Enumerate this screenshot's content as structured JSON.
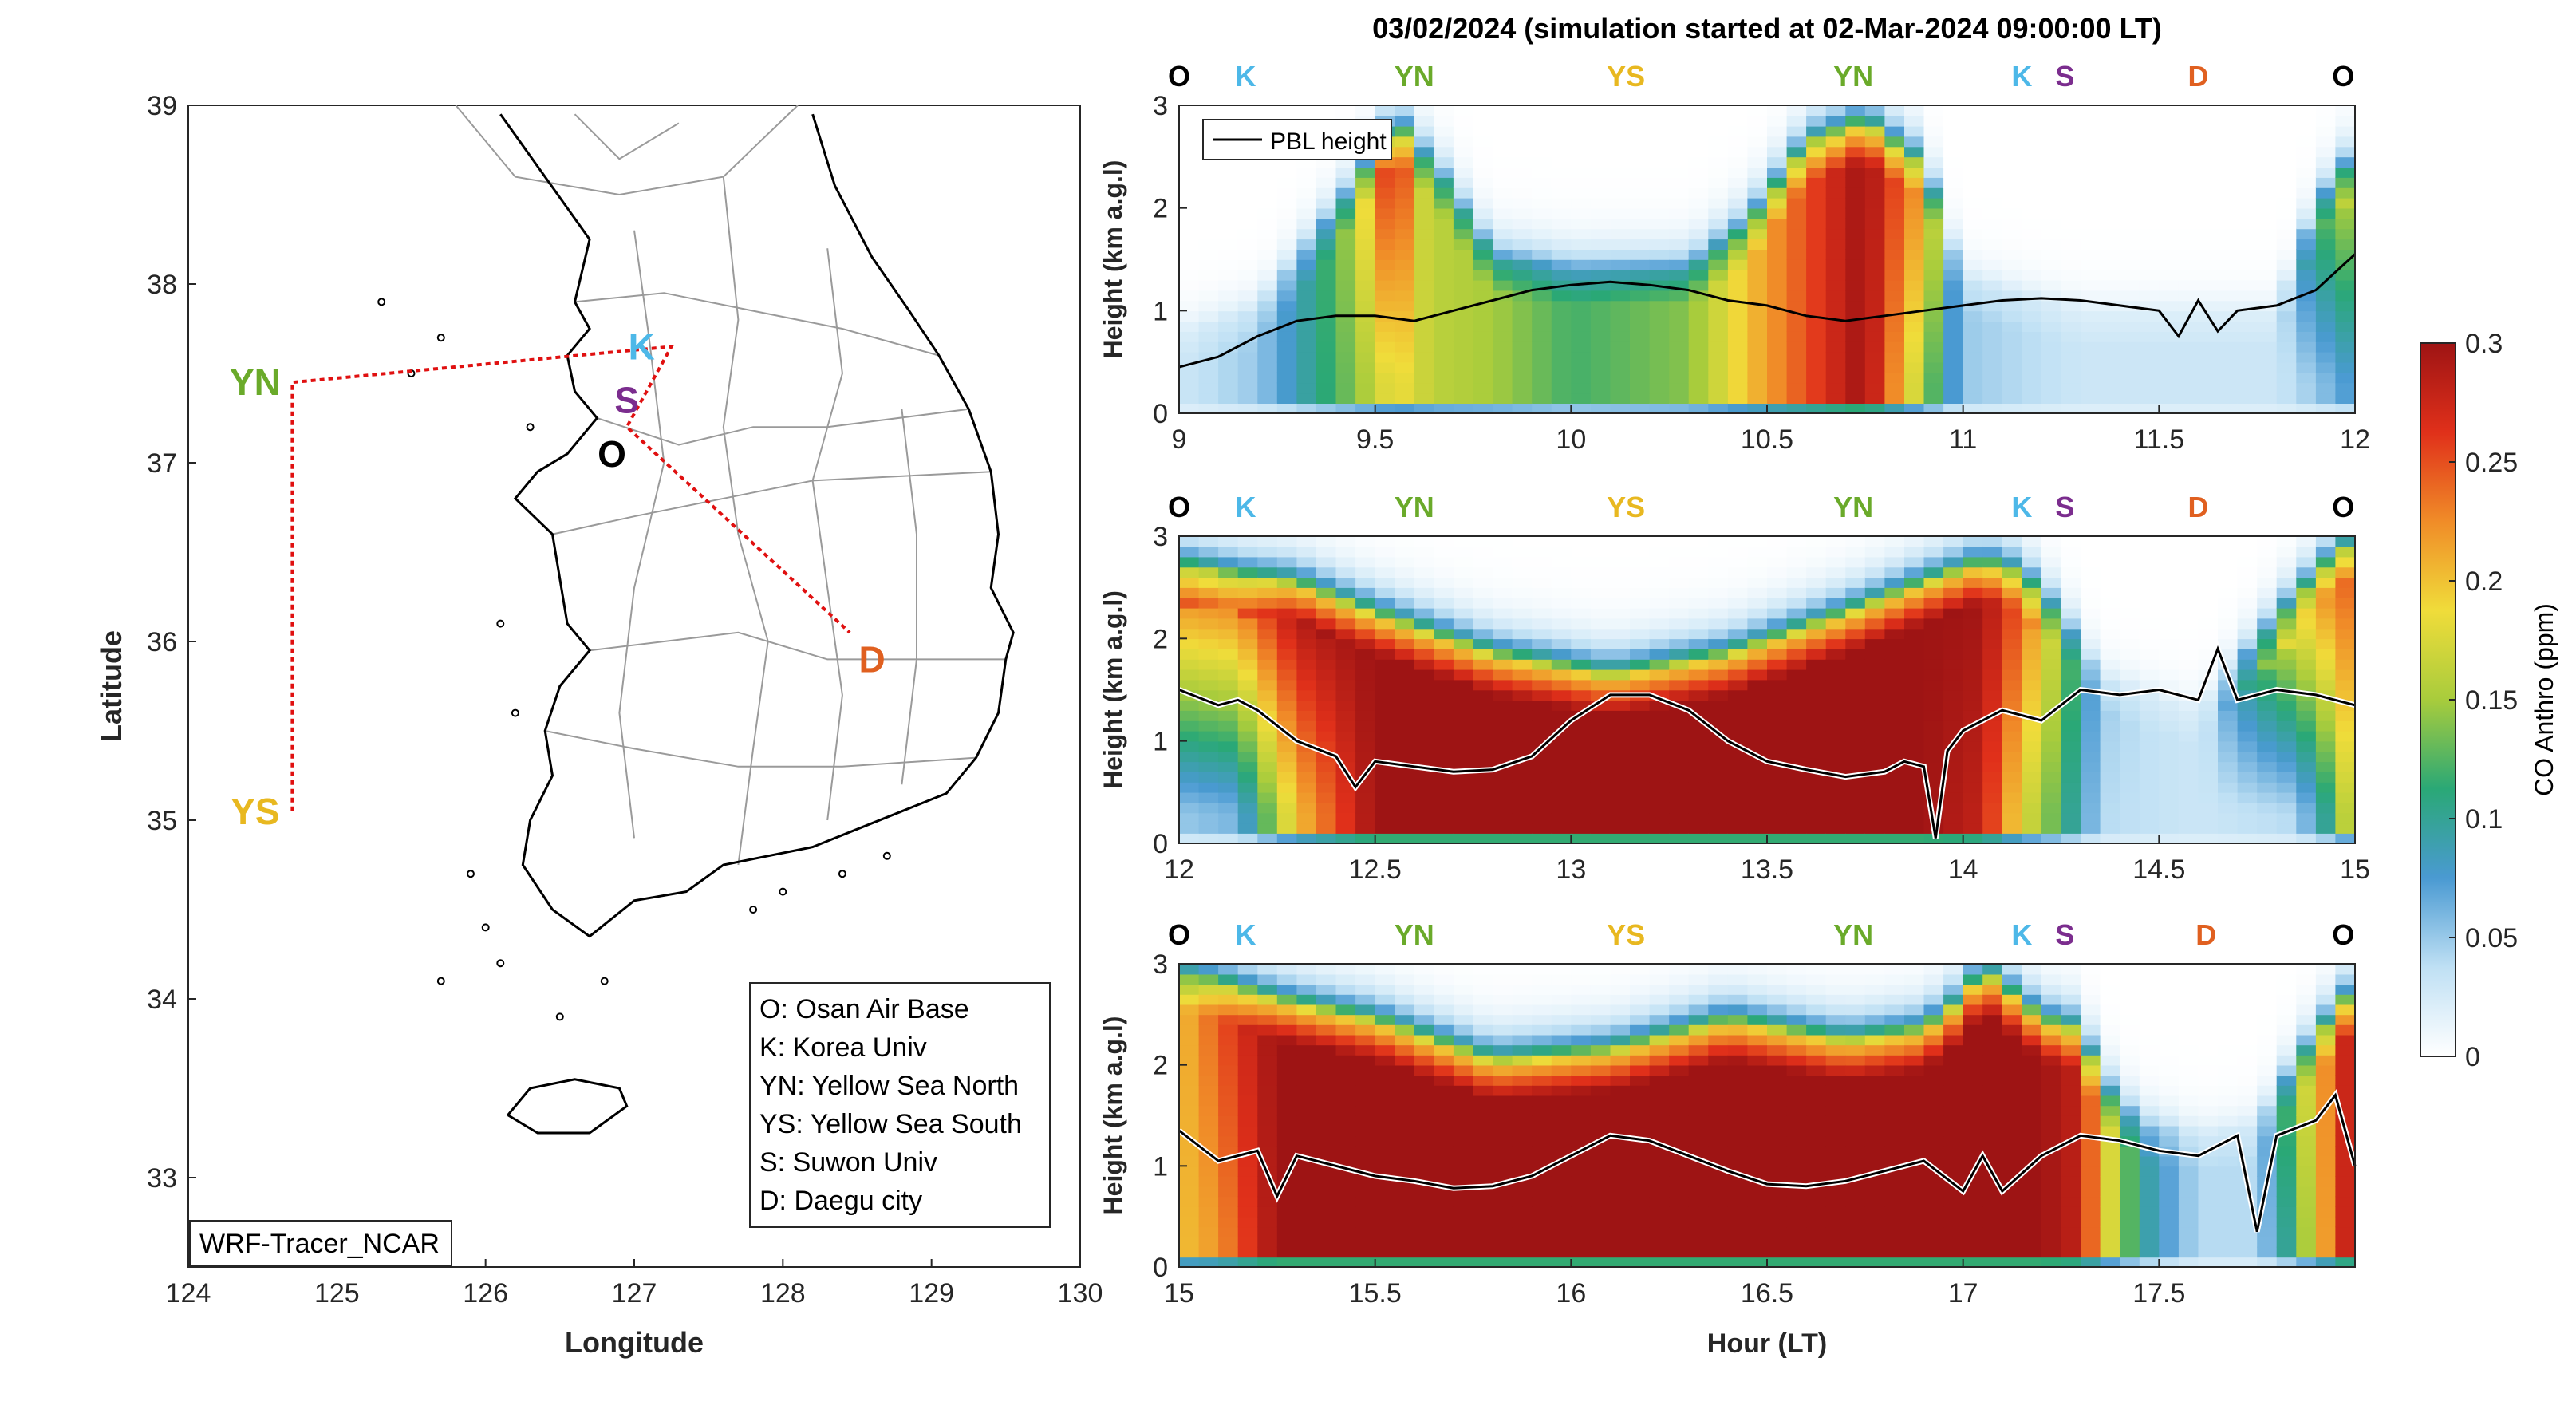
{
  "figure": {
    "title": "03/02/2024 (simulation started at 02-Mar-2024 09:00:00 LT)",
    "colors": {
      "pbl_line": "#000000",
      "pbl_halo": "#ffffff",
      "route_line": "#e01010"
    }
  },
  "map": {
    "xlabel": "Longitude",
    "ylabel": "Latitude",
    "xlim": [
      124,
      130
    ],
    "ylim": [
      32.5,
      39
    ],
    "xticks": [
      "124",
      "125",
      "126",
      "127",
      "128",
      "129",
      "130"
    ],
    "yticks": [
      "33",
      "34",
      "35",
      "36",
      "37",
      "38",
      "39"
    ],
    "source_label": "WRF-Tracer_NCAR",
    "route_path": [
      [
        124.7,
        35.05
      ],
      [
        124.7,
        37.45
      ],
      [
        127.25,
        37.65
      ],
      [
        126.95,
        37.2
      ],
      [
        128.45,
        36.05
      ]
    ],
    "sites": [
      {
        "key": "O",
        "lon": 126.85,
        "lat": 37.05,
        "color": "#000000"
      },
      {
        "key": "K",
        "lon": 127.05,
        "lat": 37.65,
        "color": "#4db8e8"
      },
      {
        "key": "S",
        "lon": 126.95,
        "lat": 37.35,
        "color": "#7b2d8e"
      },
      {
        "key": "YN",
        "lon": 124.45,
        "lat": 37.45,
        "color": "#6aaa2a"
      },
      {
        "key": "YS",
        "lon": 124.45,
        "lat": 35.05,
        "color": "#e8b820"
      },
      {
        "key": "D",
        "lon": 128.6,
        "lat": 35.9,
        "color": "#e06020"
      }
    ],
    "legend": [
      "O: Osan Air Base",
      "K: Korea Univ",
      "YN: Yellow Sea North",
      "YS: Yellow Sea South",
      "S: Suwon Univ",
      "D: Daegu city"
    ]
  },
  "chart_data": [
    {
      "type": "heatmap",
      "panel": 1,
      "xlabel": "",
      "ylabel": "Height (km a.g.l)",
      "xlim": [
        9,
        12
      ],
      "ylim": [
        0,
        3
      ],
      "xticks": [
        "9",
        "9.5",
        "10",
        "10.5",
        "11",
        "11.5",
        "12"
      ],
      "yticks": [
        "0",
        "1",
        "2",
        "3"
      ],
      "legend": [
        "PBL height"
      ],
      "route_labels": [
        {
          "text": "O",
          "x": 9.0,
          "color": "#000000"
        },
        {
          "text": "K",
          "x": 9.17,
          "color": "#4db8e8"
        },
        {
          "text": "YN",
          "x": 9.6,
          "color": "#6aaa2a"
        },
        {
          "text": "YS",
          "x": 10.14,
          "color": "#e8b820"
        },
        {
          "text": "YN",
          "x": 10.72,
          "color": "#6aaa2a"
        },
        {
          "text": "K",
          "x": 11.15,
          "color": "#4db8e8"
        },
        {
          "text": "S",
          "x": 11.26,
          "color": "#7b2d8e"
        },
        {
          "text": "D",
          "x": 11.6,
          "color": "#e06020"
        },
        {
          "text": "O",
          "x": 11.97,
          "color": "#000000"
        }
      ],
      "pbl_height": {
        "x": [
          9.0,
          9.1,
          9.2,
          9.3,
          9.4,
          9.5,
          9.6,
          9.7,
          9.8,
          9.9,
          10.0,
          10.1,
          10.2,
          10.3,
          10.4,
          10.5,
          10.6,
          10.7,
          10.8,
          10.9,
          11.0,
          11.1,
          11.2,
          11.3,
          11.4,
          11.5,
          11.55,
          11.6,
          11.65,
          11.7,
          11.8,
          11.9,
          12.0
        ],
        "y": [
          0.45,
          0.55,
          0.75,
          0.9,
          0.95,
          0.95,
          0.9,
          1.0,
          1.1,
          1.2,
          1.25,
          1.28,
          1.25,
          1.2,
          1.1,
          1.05,
          0.95,
          0.9,
          0.95,
          1.0,
          1.05,
          1.1,
          1.12,
          1.1,
          1.05,
          1.0,
          0.75,
          1.1,
          0.8,
          1.0,
          1.05,
          1.2,
          1.55
        ]
      },
      "co_profile": {
        "x": [
          9.0,
          9.2,
          9.45,
          9.55,
          9.65,
          9.8,
          10.0,
          10.3,
          10.45,
          10.6,
          10.75,
          10.9,
          11.0,
          11.3,
          11.8,
          11.9,
          12.0
        ],
        "column": [
          0.03,
          0.05,
          0.14,
          0.19,
          0.16,
          0.15,
          0.12,
          0.14,
          0.2,
          0.25,
          0.3,
          0.15,
          0.05,
          0.03,
          0.03,
          0.05,
          0.08
        ],
        "top": [
          0.8,
          1.0,
          2.2,
          2.8,
          2.4,
          1.5,
          1.4,
          1.4,
          1.8,
          2.6,
          2.8,
          2.4,
          1.3,
          1.0,
          1.0,
          2.0,
          2.5
        ],
        "aloft": [
          0.02,
          0.02,
          0.16,
          0.3,
          0.12,
          0.01,
          0.01,
          0.01,
          0.1,
          0.25,
          0.3,
          0.22,
          0.01,
          0.01,
          0.02,
          0.12,
          0.18
        ]
      }
    },
    {
      "type": "heatmap",
      "panel": 2,
      "xlabel": "",
      "ylabel": "Height (km a.g.l)",
      "xlim": [
        12,
        15
      ],
      "ylim": [
        0,
        3
      ],
      "xticks": [
        "12",
        "12.5",
        "13",
        "13.5",
        "14",
        "14.5",
        "15"
      ],
      "yticks": [
        "0",
        "1",
        "2",
        "3"
      ],
      "route_labels": [
        {
          "text": "O",
          "x": 12.0,
          "color": "#000000"
        },
        {
          "text": "K",
          "x": 12.17,
          "color": "#4db8e8"
        },
        {
          "text": "YN",
          "x": 12.6,
          "color": "#6aaa2a"
        },
        {
          "text": "YS",
          "x": 13.14,
          "color": "#e8b820"
        },
        {
          "text": "YN",
          "x": 13.72,
          "color": "#6aaa2a"
        },
        {
          "text": "K",
          "x": 14.15,
          "color": "#4db8e8"
        },
        {
          "text": "S",
          "x": 14.26,
          "color": "#7b2d8e"
        },
        {
          "text": "D",
          "x": 14.6,
          "color": "#e06020"
        },
        {
          "text": "O",
          "x": 14.97,
          "color": "#000000"
        }
      ],
      "pbl_height": {
        "x": [
          12.0,
          12.1,
          12.15,
          12.2,
          12.3,
          12.4,
          12.45,
          12.5,
          12.6,
          12.7,
          12.8,
          12.9,
          13.0,
          13.1,
          13.2,
          13.3,
          13.4,
          13.5,
          13.6,
          13.7,
          13.8,
          13.85,
          13.9,
          13.93,
          13.96,
          14.0,
          14.1,
          14.2,
          14.3,
          14.4,
          14.5,
          14.6,
          14.65,
          14.7,
          14.8,
          14.9,
          15.0
        ],
        "y": [
          1.5,
          1.35,
          1.4,
          1.3,
          1.0,
          0.85,
          0.55,
          0.8,
          0.75,
          0.7,
          0.72,
          0.85,
          1.2,
          1.45,
          1.45,
          1.3,
          1.0,
          0.8,
          0.72,
          0.65,
          0.7,
          0.8,
          0.75,
          0.05,
          0.9,
          1.1,
          1.3,
          1.2,
          1.5,
          1.45,
          1.5,
          1.4,
          1.9,
          1.4,
          1.5,
          1.45,
          1.35
        ]
      },
      "co_profile": {
        "x": [
          12.0,
          12.15,
          12.3,
          12.5,
          12.8,
          13.1,
          13.4,
          13.7,
          13.9,
          14.05,
          14.15,
          14.25,
          14.35,
          14.6,
          14.85,
          14.95,
          15.0
        ],
        "column": [
          0.05,
          0.06,
          0.2,
          0.3,
          0.3,
          0.3,
          0.3,
          0.3,
          0.3,
          0.28,
          0.18,
          0.12,
          0.04,
          0.03,
          0.04,
          0.12,
          0.2
        ],
        "top": [
          2.7,
          2.6,
          2.5,
          2.2,
          1.8,
          1.6,
          1.8,
          2.2,
          2.5,
          2.7,
          2.6,
          2.2,
          1.6,
          1.3,
          2.4,
          2.8,
          2.9
        ],
        "aloft": [
          0.25,
          0.25,
          0.3,
          0.3,
          0.3,
          0.3,
          0.3,
          0.3,
          0.3,
          0.3,
          0.25,
          0.15,
          0.05,
          0.02,
          0.2,
          0.25,
          0.25
        ]
      }
    },
    {
      "type": "heatmap",
      "panel": 3,
      "xlabel": "Hour (LT)",
      "ylabel": "Height (km a.g.l)",
      "xlim": [
        15,
        18
      ],
      "ylim": [
        0,
        3
      ],
      "xticks": [
        "15",
        "15.5",
        "16",
        "16.5",
        "17",
        "17.5"
      ],
      "yticks": [
        "0",
        "1",
        "2",
        "3"
      ],
      "route_labels": [
        {
          "text": "O",
          "x": 15.0,
          "color": "#000000"
        },
        {
          "text": "K",
          "x": 15.17,
          "color": "#4db8e8"
        },
        {
          "text": "YN",
          "x": 15.6,
          "color": "#6aaa2a"
        },
        {
          "text": "YS",
          "x": 16.14,
          "color": "#e8b820"
        },
        {
          "text": "YN",
          "x": 16.72,
          "color": "#6aaa2a"
        },
        {
          "text": "K",
          "x": 17.15,
          "color": "#4db8e8"
        },
        {
          "text": "S",
          "x": 17.26,
          "color": "#7b2d8e"
        },
        {
          "text": "D",
          "x": 17.62,
          "color": "#e06020"
        },
        {
          "text": "O",
          "x": 17.97,
          "color": "#000000"
        }
      ],
      "pbl_height": {
        "x": [
          15.0,
          15.05,
          15.1,
          15.2,
          15.25,
          15.3,
          15.4,
          15.5,
          15.6,
          15.7,
          15.8,
          15.9,
          16.0,
          16.1,
          16.2,
          16.3,
          16.4,
          16.5,
          16.6,
          16.7,
          16.8,
          16.9,
          17.0,
          17.05,
          17.1,
          17.2,
          17.3,
          17.4,
          17.5,
          17.6,
          17.7,
          17.75,
          17.8,
          17.9,
          17.95,
          18.0
        ],
        "y": [
          1.35,
          1.2,
          1.05,
          1.15,
          0.7,
          1.1,
          1.0,
          0.9,
          0.85,
          0.78,
          0.8,
          0.9,
          1.1,
          1.3,
          1.25,
          1.1,
          0.95,
          0.82,
          0.8,
          0.85,
          0.95,
          1.05,
          0.75,
          1.1,
          0.75,
          1.1,
          1.3,
          1.25,
          1.15,
          1.1,
          1.3,
          0.35,
          1.3,
          1.45,
          1.7,
          1.0
        ]
      },
      "co_profile": {
        "x": [
          15.0,
          15.1,
          15.25,
          15.5,
          15.8,
          16.1,
          16.4,
          16.7,
          16.9,
          17.0,
          17.05,
          17.2,
          17.3,
          17.35,
          17.45,
          17.6,
          17.75,
          17.85,
          17.95,
          18.0
        ],
        "column": [
          0.2,
          0.22,
          0.3,
          0.3,
          0.3,
          0.3,
          0.3,
          0.3,
          0.3,
          0.3,
          0.3,
          0.3,
          0.28,
          0.2,
          0.1,
          0.04,
          0.04,
          0.12,
          0.25,
          0.3
        ],
        "top": [
          2.9,
          2.8,
          2.6,
          2.4,
          2.0,
          2.1,
          2.4,
          2.2,
          2.3,
          2.6,
          2.9,
          2.4,
          2.3,
          1.8,
          1.4,
          1.3,
          1.4,
          2.0,
          2.5,
          2.7
        ],
        "aloft": [
          0.2,
          0.25,
          0.3,
          0.3,
          0.3,
          0.3,
          0.3,
          0.3,
          0.3,
          0.3,
          0.3,
          0.3,
          0.25,
          0.15,
          0.06,
          0.03,
          0.04,
          0.15,
          0.25,
          0.3
        ]
      }
    }
  ],
  "colorbar": {
    "label": "CO Anthro (ppm)",
    "range": [
      0,
      0.3
    ],
    "ticks": [
      "0",
      "0.05",
      "0.1",
      "0.15",
      "0.2",
      "0.25",
      "0.3"
    ],
    "stops": [
      "#ffffff",
      "#bfe0f4",
      "#4a9ad2",
      "#2aa876",
      "#a8cc3c",
      "#f0dc3a",
      "#f08c28",
      "#e0301a",
      "#9e1414"
    ]
  }
}
